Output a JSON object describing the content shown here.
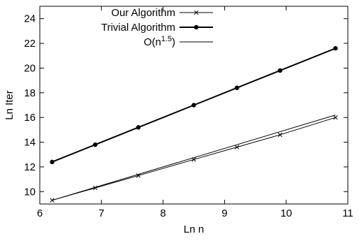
{
  "chart_data": {
    "type": "line",
    "xlabel": "Ln n",
    "ylabel": "Ln Iter",
    "xlim": [
      6,
      11
    ],
    "ylim": [
      9,
      25
    ],
    "xticks": [
      6,
      7,
      8,
      9,
      10,
      11
    ],
    "yticks": [
      10,
      12,
      14,
      16,
      18,
      20,
      22,
      24
    ],
    "x_tick_labels": [
      "6",
      "7",
      "8",
      "9",
      "10",
      "11"
    ],
    "y_tick_labels": [
      "10",
      "12",
      "14",
      "16",
      "18",
      "20",
      "22",
      "24"
    ],
    "grid": false,
    "legend_position": "top-right",
    "series": [
      {
        "name": "Our Algorithm",
        "marker": "x",
        "x": [
          6.2,
          6.9,
          7.6,
          8.5,
          9.2,
          9.9,
          10.8
        ],
        "y": [
          9.3,
          10.3,
          11.3,
          12.6,
          13.6,
          14.6,
          16.0
        ]
      },
      {
        "name": "Trivial Algorithm",
        "marker": "circle",
        "x": [
          6.2,
          6.9,
          7.6,
          8.5,
          9.2,
          9.9,
          10.8
        ],
        "y": [
          12.4,
          13.8,
          15.2,
          17.0,
          18.4,
          19.8,
          21.6
        ]
      },
      {
        "name": "O(n^{1.5})",
        "legend_main": "O(n",
        "legend_sup": "1.5",
        "legend_close": ")",
        "marker": "none",
        "x": [
          6.2,
          10.8
        ],
        "y": [
          9.3,
          16.2
        ]
      }
    ]
  }
}
